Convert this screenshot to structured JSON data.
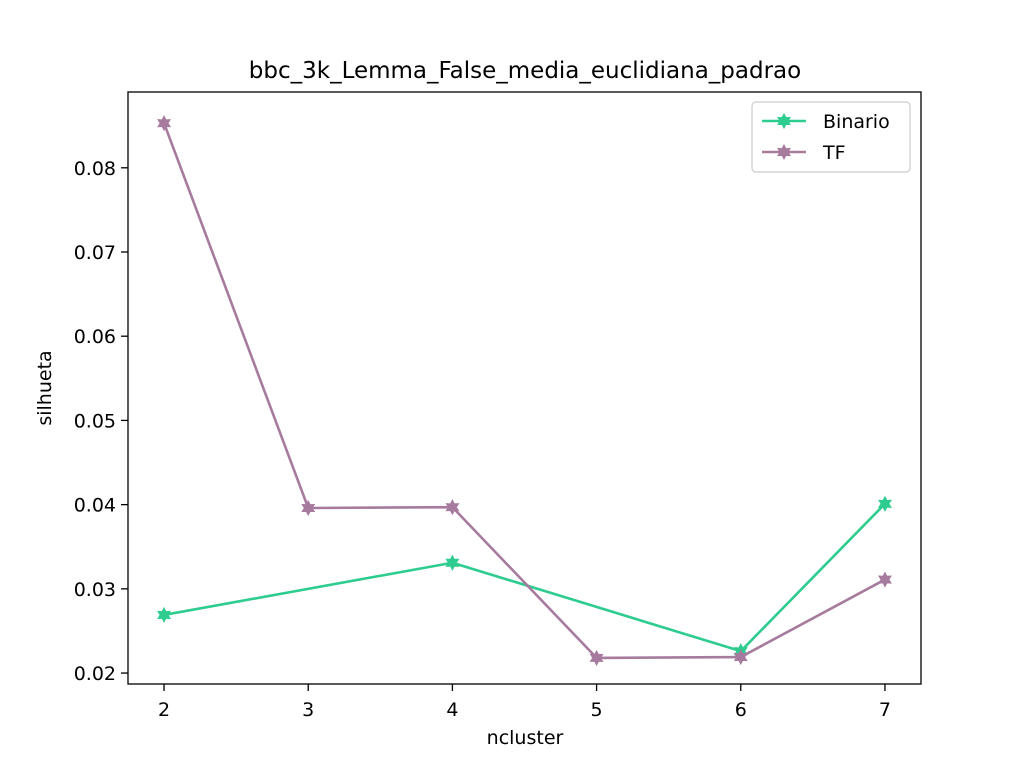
{
  "chart_data": {
    "type": "line",
    "title": "bbc_3k_Lemma_False_media_euclidiana_padrao",
    "xlabel": "ncluster",
    "ylabel": "silhueta",
    "x": [
      2,
      3,
      4,
      5,
      6,
      7
    ],
    "xlim": [
      1.75,
      7.25
    ],
    "ylim": [
      0.0187,
      0.089
    ],
    "xticks": [
      2,
      3,
      4,
      5,
      6,
      7
    ],
    "yticks": [
      0.02,
      0.03,
      0.04,
      0.05,
      0.06,
      0.07,
      0.08
    ],
    "ytick_labels": [
      "0.02",
      "0.03",
      "0.04",
      "0.05",
      "0.06",
      "0.07",
      "0.08"
    ],
    "grid": false,
    "legend_position": "top-right",
    "marker": "star",
    "series": [
      {
        "name": "Binario",
        "color": "#2ecc8e",
        "x": [
          2,
          4,
          6,
          7
        ],
        "values": [
          0.0269,
          0.0331,
          0.0226,
          0.0401
        ]
      },
      {
        "name": "TF",
        "color": "#a67b9e",
        "x": [
          2,
          3,
          4,
          5,
          6,
          7
        ],
        "values": [
          0.0853,
          0.0396,
          0.0397,
          0.0218,
          0.0219,
          0.0311
        ]
      }
    ]
  }
}
